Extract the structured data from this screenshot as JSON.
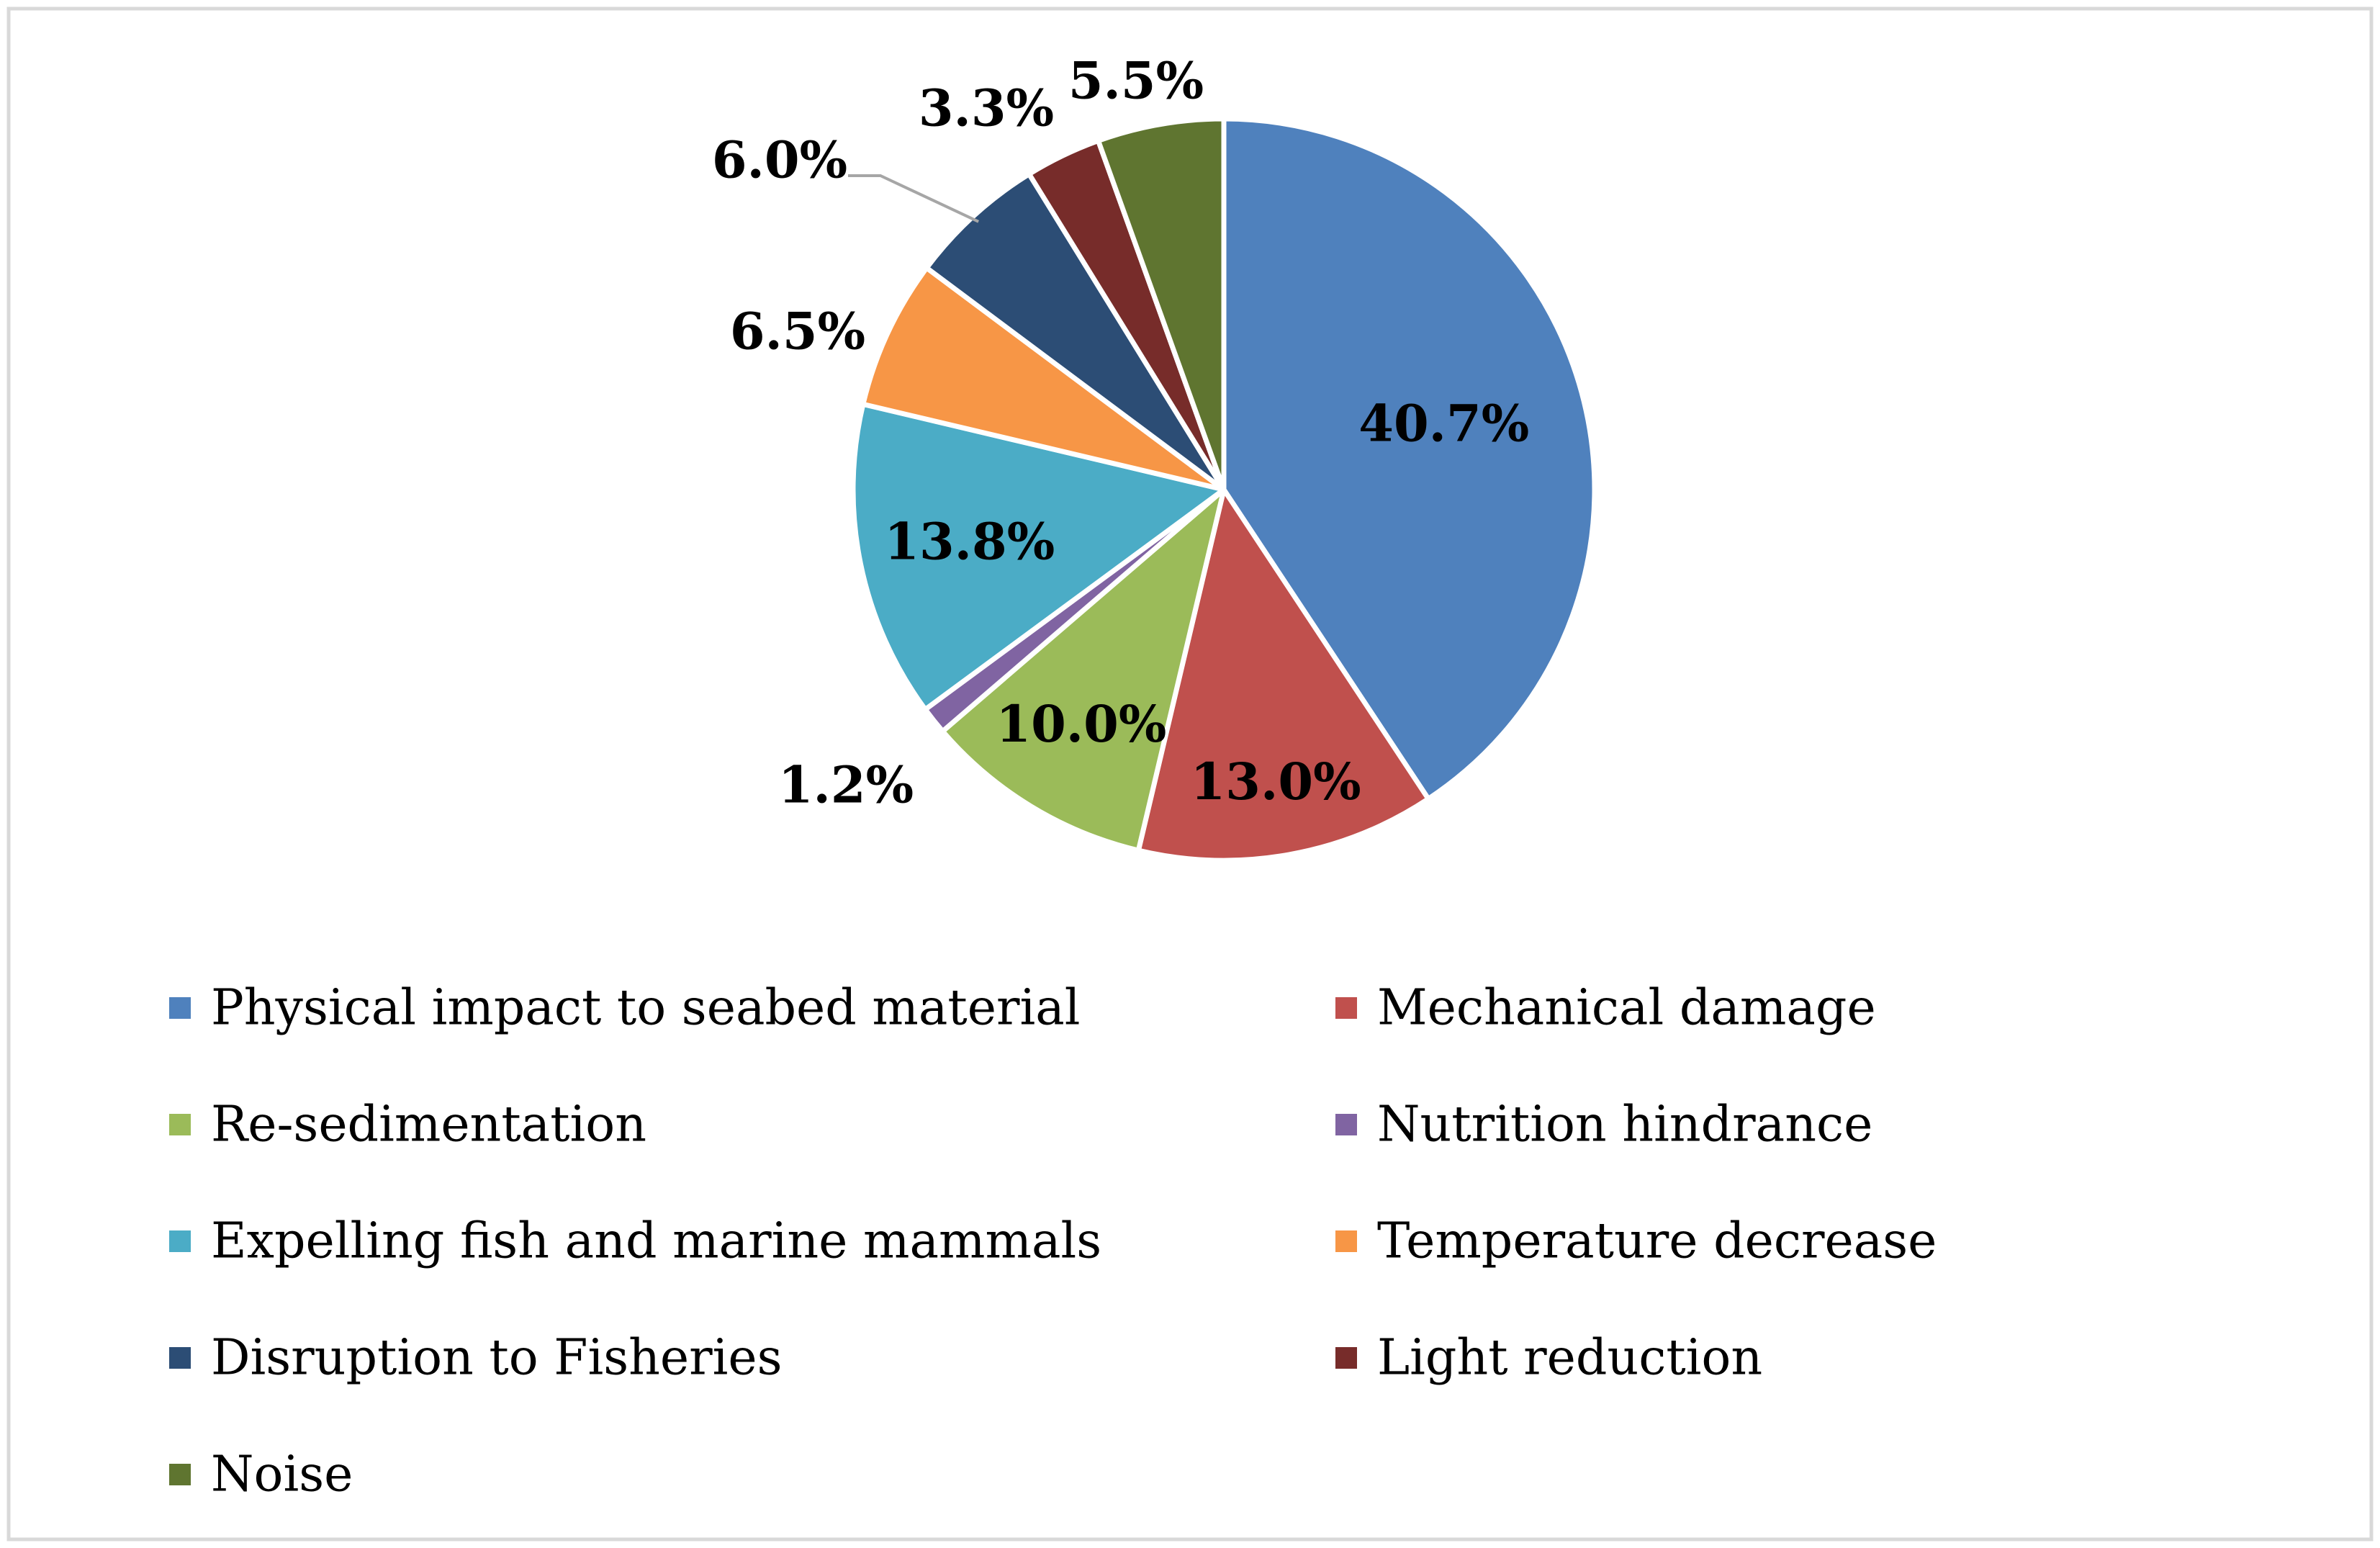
{
  "chart_data": {
    "type": "pie",
    "title": "",
    "start_angle_deg": 0,
    "direction": "clockwise",
    "legend_position": "bottom",
    "slices": [
      {
        "label": "Physical impact to seabed material",
        "value": 40.7,
        "display": "40.7%",
        "color": "#4F81BD",
        "label_color": "#000000"
      },
      {
        "label": "Mechanical damage",
        "value": 13.0,
        "display": "13.0%",
        "color": "#C0504D",
        "label_color": "#000000"
      },
      {
        "label": "Re-sedimentation",
        "value": 10.0,
        "display": "10.0%",
        "color": "#9BBB59",
        "label_color": "#000000"
      },
      {
        "label": "Nutrition hindrance",
        "value": 1.2,
        "display": "1.2%",
        "color": "#8064A2",
        "label_color": "#000000"
      },
      {
        "label": "Expelling fish and marine mammals",
        "value": 13.8,
        "display": "13.8%",
        "color": "#4BACC6",
        "label_color": "#000000"
      },
      {
        "label": "Temperature decrease",
        "value": 6.5,
        "display": "6.5%",
        "color": "#F79646",
        "label_color": "#000000"
      },
      {
        "label": "Disruption to Fisheries",
        "value": 6.0,
        "display": "6.0%",
        "color": "#2C4D75",
        "label_color": "#000000"
      },
      {
        "label": "Light reduction",
        "value": 3.3,
        "display": "3.3%",
        "color": "#772C2A",
        "label_color": "#000000"
      },
      {
        "label": "Noise",
        "value": 5.5,
        "display": "5.5%",
        "color": "#5F7530",
        "label_color": "#000000"
      }
    ]
  }
}
